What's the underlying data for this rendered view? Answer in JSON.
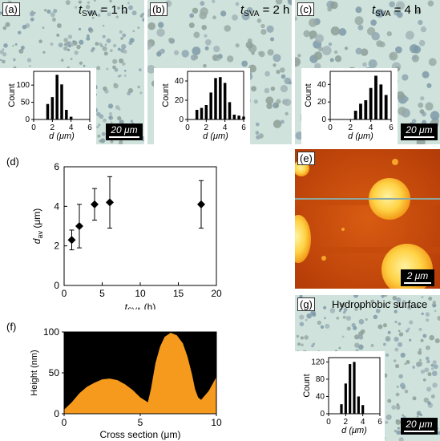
{
  "panels": {
    "a": {
      "tag": "(a)",
      "t_symbol": "t",
      "t_sub": "SVA",
      "t_value": "= 1 h",
      "scale_bar": "20 μm"
    },
    "b": {
      "tag": "(b)",
      "t_symbol": "t",
      "t_sub": "SVA",
      "t_value": "= 2 h"
    },
    "c": {
      "tag": "(c)",
      "t_symbol": "t",
      "t_sub": "SVA",
      "t_value": "= 4 h",
      "scale_bar": "20 μm"
    },
    "d": {
      "tag": "(d)"
    },
    "e": {
      "tag": "(e)",
      "scale_bar": "2 μm"
    },
    "f": {
      "tag": "(f)"
    },
    "g": {
      "tag": "(g)",
      "title": "Hydrophobic surface",
      "scale_bar": "20 μm"
    }
  },
  "chart_data": [
    {
      "id": "hist-a",
      "type": "bar",
      "xlabel": "d (μm)",
      "ylabel": "Count",
      "xlim": [
        0,
        6
      ],
      "ylim": [
        0,
        140
      ],
      "xticks": [
        "0",
        "2",
        "4",
        "6"
      ],
      "yticks": [
        "0",
        "50",
        "100"
      ],
      "ytick_values": [
        0,
        50,
        100
      ],
      "x": [
        1.5,
        2.0,
        2.5,
        3.0,
        3.5,
        4.0
      ],
      "values": [
        45,
        65,
        130,
        102,
        28,
        8
      ]
    },
    {
      "id": "hist-b",
      "type": "bar",
      "xlabel": "d (μm)",
      "ylabel": "Count",
      "xlim": [
        0,
        6
      ],
      "ylim": [
        0,
        50
      ],
      "xticks": [
        "0",
        "2",
        "4",
        "6"
      ],
      "yticks": [
        "0",
        "20",
        "40"
      ],
      "ytick_values": [
        0,
        20,
        40
      ],
      "x": [
        1.0,
        1.5,
        2.0,
        2.5,
        3.0,
        3.5,
        4.0,
        4.5,
        5.0,
        5.5,
        6.0
      ],
      "values": [
        10,
        12,
        15,
        28,
        43,
        44,
        38,
        18,
        5,
        4,
        3
      ]
    },
    {
      "id": "hist-c",
      "type": "bar",
      "xlabel": "d (μm)",
      "ylabel": "Count",
      "xlim": [
        0,
        6
      ],
      "ylim": [
        0,
        55
      ],
      "xticks": [
        "0",
        "2",
        "4",
        "6"
      ],
      "yticks": [
        "0",
        "20",
        "40"
      ],
      "ytick_values": [
        0,
        20,
        40
      ],
      "x": [
        2.5,
        3.0,
        3.5,
        4.0,
        4.5,
        5.0,
        5.5
      ],
      "values": [
        10,
        18,
        22,
        36,
        50,
        40,
        28
      ]
    },
    {
      "id": "scatter-d",
      "type": "scatter",
      "xlabel": "t_SVA (h)",
      "ylabel": "d_av (μm)",
      "xlim": [
        0,
        20
      ],
      "ylim": [
        0,
        6
      ],
      "xticks": [
        0,
        5,
        10,
        15,
        20
      ],
      "yticks": [
        0,
        2,
        4,
        6
      ],
      "points": [
        {
          "x": 1,
          "y": 2.3,
          "err_low": 1.8,
          "err_high": 2.8
        },
        {
          "x": 2,
          "y": 3.0,
          "err_low": 1.9,
          "err_high": 4.1
        },
        {
          "x": 4,
          "y": 4.1,
          "err_low": 3.3,
          "err_high": 4.9
        },
        {
          "x": 6,
          "y": 4.2,
          "err_low": 2.9,
          "err_high": 5.5
        },
        {
          "x": 18,
          "y": 4.1,
          "err_low": 2.9,
          "err_high": 5.3
        }
      ]
    },
    {
      "id": "profile-f",
      "type": "area",
      "xlabel": "Cross section (μm)",
      "ylabel": "Height (nm)",
      "xlim": [
        0,
        10
      ],
      "ylim": [
        0,
        100
      ],
      "xticks": [
        0,
        5,
        10
      ],
      "yticks": [
        0,
        50,
        100
      ],
      "fill_color": "#f59a1c",
      "background_color": "#000000",
      "x": [
        0,
        0.5,
        1.0,
        1.5,
        2.0,
        2.5,
        3.0,
        3.5,
        4.0,
        4.5,
        5.0,
        5.5,
        5.7,
        6.0,
        6.3,
        6.6,
        7.0,
        7.4,
        7.8,
        8.1,
        8.4,
        8.6,
        8.8,
        9.0,
        9.5,
        10.0
      ],
      "y": [
        5,
        14,
        25,
        33,
        38,
        42,
        43,
        41,
        36,
        29,
        20,
        14,
        30,
        62,
        82,
        94,
        99,
        96,
        86,
        70,
        48,
        30,
        20,
        17,
        28,
        45
      ]
    },
    {
      "id": "hist-g",
      "type": "bar",
      "xlabel": "d (μm)",
      "ylabel": "Count",
      "xlim": [
        0,
        6
      ],
      "ylim": [
        0,
        130
      ],
      "xticks": [
        "0",
        "2",
        "4",
        "6"
      ],
      "yticks": [
        "0",
        "40",
        "80",
        "120"
      ],
      "ytick_values": [
        0,
        40,
        80,
        120
      ],
      "x": [
        1.5,
        2.0,
        2.5,
        3.0,
        3.5,
        4.0
      ],
      "values": [
        22,
        70,
        115,
        120,
        40,
        20
      ]
    }
  ]
}
